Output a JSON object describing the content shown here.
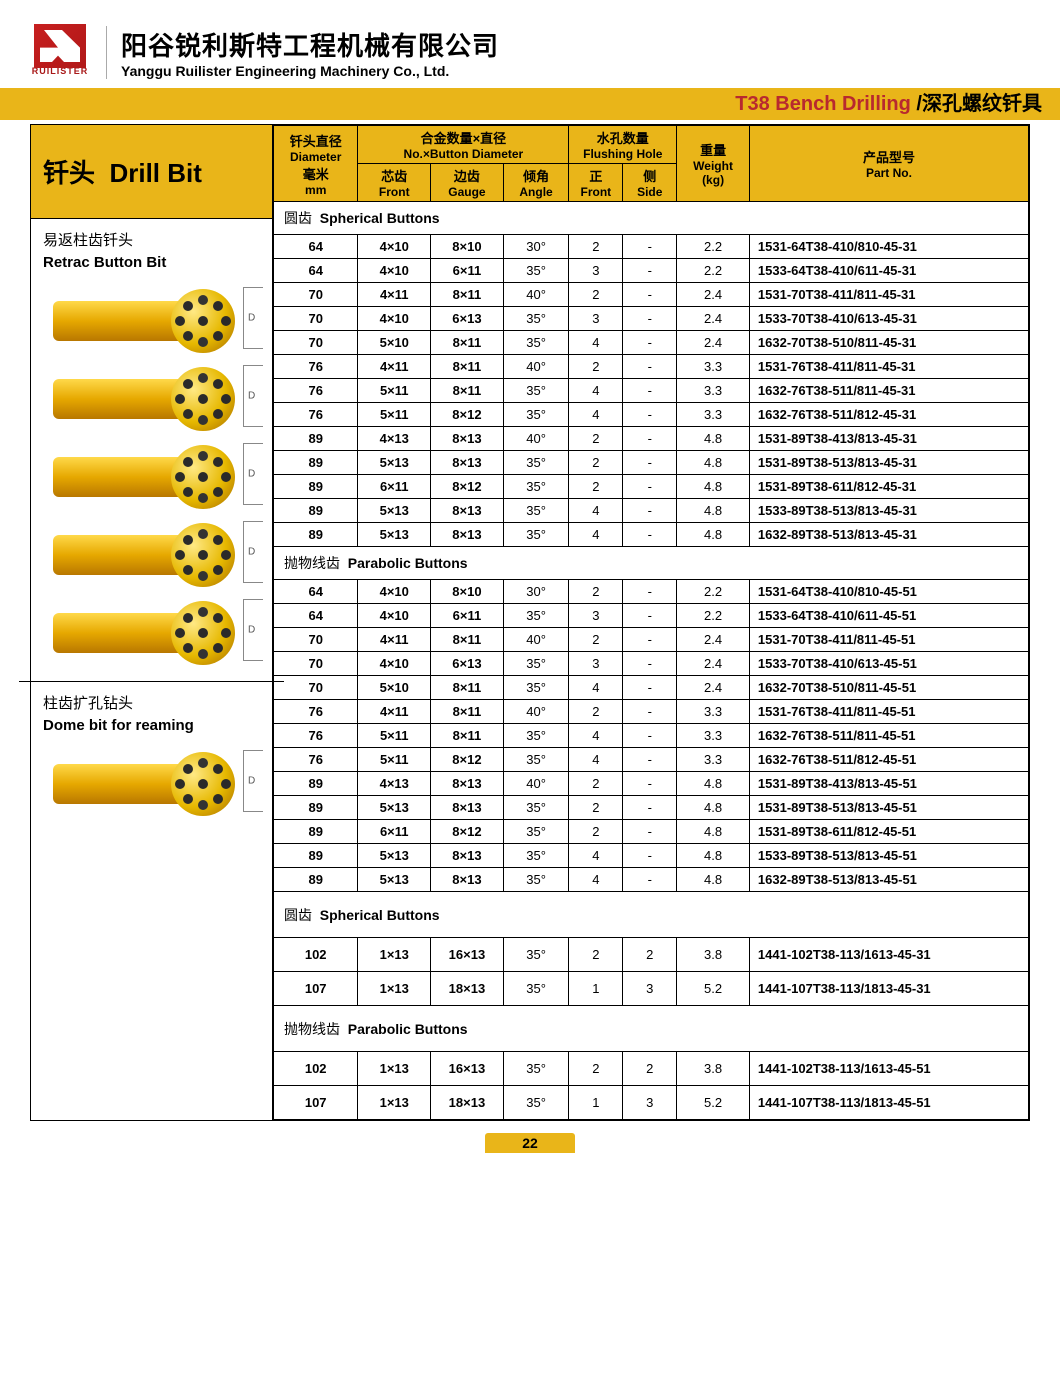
{
  "logo_text": "RUILISTER",
  "company_cn": "阳谷锐利斯特工程机械有限公司",
  "company_en": "Yanggu Ruilister Engineering Machinery Co., Ltd.",
  "gold_bar_red": "T38 Bench Drilling",
  "gold_bar_rest": " /深孔螺纹钎具",
  "title_cn": "钎头",
  "title_en": "Drill Bit",
  "headers": {
    "diameter_cn": "钎头直径",
    "diameter_en": "Diameter",
    "diameter_unit_cn": "毫米",
    "diameter_unit_en": "mm",
    "button_cn": "合金数量×直径",
    "button_en": "No.×Button Diameter",
    "front_cn": "芯齿",
    "front_en": "Front",
    "gauge_cn": "边齿",
    "gauge_en": "Gauge",
    "angle_cn": "倾角",
    "angle_en": "Angle",
    "flush_cn": "水孔数量",
    "flush_en": "Flushing Hole",
    "ffront_cn": "正",
    "ffront_en": "Front",
    "side_cn": "侧",
    "side_en": "Side",
    "weight_cn": "重量",
    "weight_en": "Weight",
    "weight_unit": "(kg)",
    "part_cn": "产品型号",
    "part_en": "Part No."
  },
  "left": [
    {
      "cn": "易返柱齿钎头",
      "en": "Retrac Button Bit",
      "images": 5
    },
    {
      "cn": "柱齿扩孔钻头",
      "en": "Dome bit for reaming",
      "images": 1
    }
  ],
  "sections": [
    {
      "title_cn": "圆齿",
      "title_en": "Spherical Buttons",
      "rows": [
        [
          "64",
          "4×10",
          "8×10",
          "30°",
          "2",
          "-",
          "2.2",
          "1531-64T38-410/810-45-31"
        ],
        [
          "64",
          "4×10",
          "6×11",
          "35°",
          "3",
          "-",
          "2.2",
          "1533-64T38-410/611-45-31"
        ],
        [
          "70",
          "4×11",
          "8×11",
          "40°",
          "2",
          "-",
          "2.4",
          "1531-70T38-411/811-45-31"
        ],
        [
          "70",
          "4×10",
          "6×13",
          "35°",
          "3",
          "-",
          "2.4",
          "1533-70T38-410/613-45-31"
        ],
        [
          "70",
          "5×10",
          "8×11",
          "35°",
          "4",
          "-",
          "2.4",
          "1632-70T38-510/811-45-31"
        ],
        [
          "76",
          "4×11",
          "8×11",
          "40°",
          "2",
          "-",
          "3.3",
          "1531-76T38-411/811-45-31"
        ],
        [
          "76",
          "5×11",
          "8×11",
          "35°",
          "4",
          "-",
          "3.3",
          "1632-76T38-511/811-45-31"
        ],
        [
          "76",
          "5×11",
          "8×12",
          "35°",
          "4",
          "-",
          "3.3",
          "1632-76T38-511/812-45-31"
        ],
        [
          "89",
          "4×13",
          "8×13",
          "40°",
          "2",
          "-",
          "4.8",
          "1531-89T38-413/813-45-31"
        ],
        [
          "89",
          "5×13",
          "8×13",
          "35°",
          "2",
          "-",
          "4.8",
          "1531-89T38-513/813-45-31"
        ],
        [
          "89",
          "6×11",
          "8×12",
          "35°",
          "2",
          "-",
          "4.8",
          "1531-89T38-611/812-45-31"
        ],
        [
          "89",
          "5×13",
          "8×13",
          "35°",
          "4",
          "-",
          "4.8",
          "1533-89T38-513/813-45-31"
        ],
        [
          "89",
          "5×13",
          "8×13",
          "35°",
          "4",
          "-",
          "4.8",
          "1632-89T38-513/813-45-31"
        ]
      ]
    },
    {
      "title_cn": "抛物线齿",
      "title_en": "Parabolic Buttons",
      "rows": [
        [
          "64",
          "4×10",
          "8×10",
          "30°",
          "2",
          "-",
          "2.2",
          "1531-64T38-410/810-45-51"
        ],
        [
          "64",
          "4×10",
          "6×11",
          "35°",
          "3",
          "-",
          "2.2",
          "1533-64T38-410/611-45-51"
        ],
        [
          "70",
          "4×11",
          "8×11",
          "40°",
          "2",
          "-",
          "2.4",
          "1531-70T38-411/811-45-51"
        ],
        [
          "70",
          "4×10",
          "6×13",
          "35°",
          "3",
          "-",
          "2.4",
          "1533-70T38-410/613-45-51"
        ],
        [
          "70",
          "5×10",
          "8×11",
          "35°",
          "4",
          "-",
          "2.4",
          "1632-70T38-510/811-45-51"
        ],
        [
          "76",
          "4×11",
          "8×11",
          "40°",
          "2",
          "-",
          "3.3",
          "1531-76T38-411/811-45-51"
        ],
        [
          "76",
          "5×11",
          "8×11",
          "35°",
          "4",
          "-",
          "3.3",
          "1632-76T38-511/811-45-51"
        ],
        [
          "76",
          "5×11",
          "8×12",
          "35°",
          "4",
          "-",
          "3.3",
          "1632-76T38-511/812-45-51"
        ],
        [
          "89",
          "4×13",
          "8×13",
          "40°",
          "2",
          "-",
          "4.8",
          "1531-89T38-413/813-45-51"
        ],
        [
          "89",
          "5×13",
          "8×13",
          "35°",
          "2",
          "-",
          "4.8",
          "1531-89T38-513/813-45-51"
        ],
        [
          "89",
          "6×11",
          "8×12",
          "35°",
          "2",
          "-",
          "4.8",
          "1531-89T38-611/812-45-51"
        ],
        [
          "89",
          "5×13",
          "8×13",
          "35°",
          "4",
          "-",
          "4.8",
          "1533-89T38-513/813-45-51"
        ],
        [
          "89",
          "5×13",
          "8×13",
          "35°",
          "4",
          "-",
          "4.8",
          "1632-89T38-513/813-45-51"
        ]
      ]
    },
    {
      "title_cn": "圆齿",
      "title_en": "Spherical Buttons",
      "tall": true,
      "rows": [
        [
          "102",
          "1×13",
          "16×13",
          "35°",
          "2",
          "2",
          "3.8",
          "1441-102T38-113/1613-45-31"
        ],
        [
          "107",
          "1×13",
          "18×13",
          "35°",
          "1",
          "3",
          "5.2",
          "1441-107T38-113/1813-45-31"
        ]
      ]
    },
    {
      "title_cn": "抛物线齿",
      "title_en": "Parabolic Buttons",
      "tall": true,
      "rows": [
        [
          "102",
          "1×13",
          "16×13",
          "35°",
          "2",
          "2",
          "3.8",
          "1441-102T38-113/1613-45-51"
        ],
        [
          "107",
          "1×13",
          "18×13",
          "35°",
          "1",
          "3",
          "5.2",
          "1441-107T38-113/1813-45-51"
        ]
      ]
    }
  ],
  "page_num": "22",
  "colors": {
    "gold": "#e9b519",
    "red": "#b8292f"
  }
}
